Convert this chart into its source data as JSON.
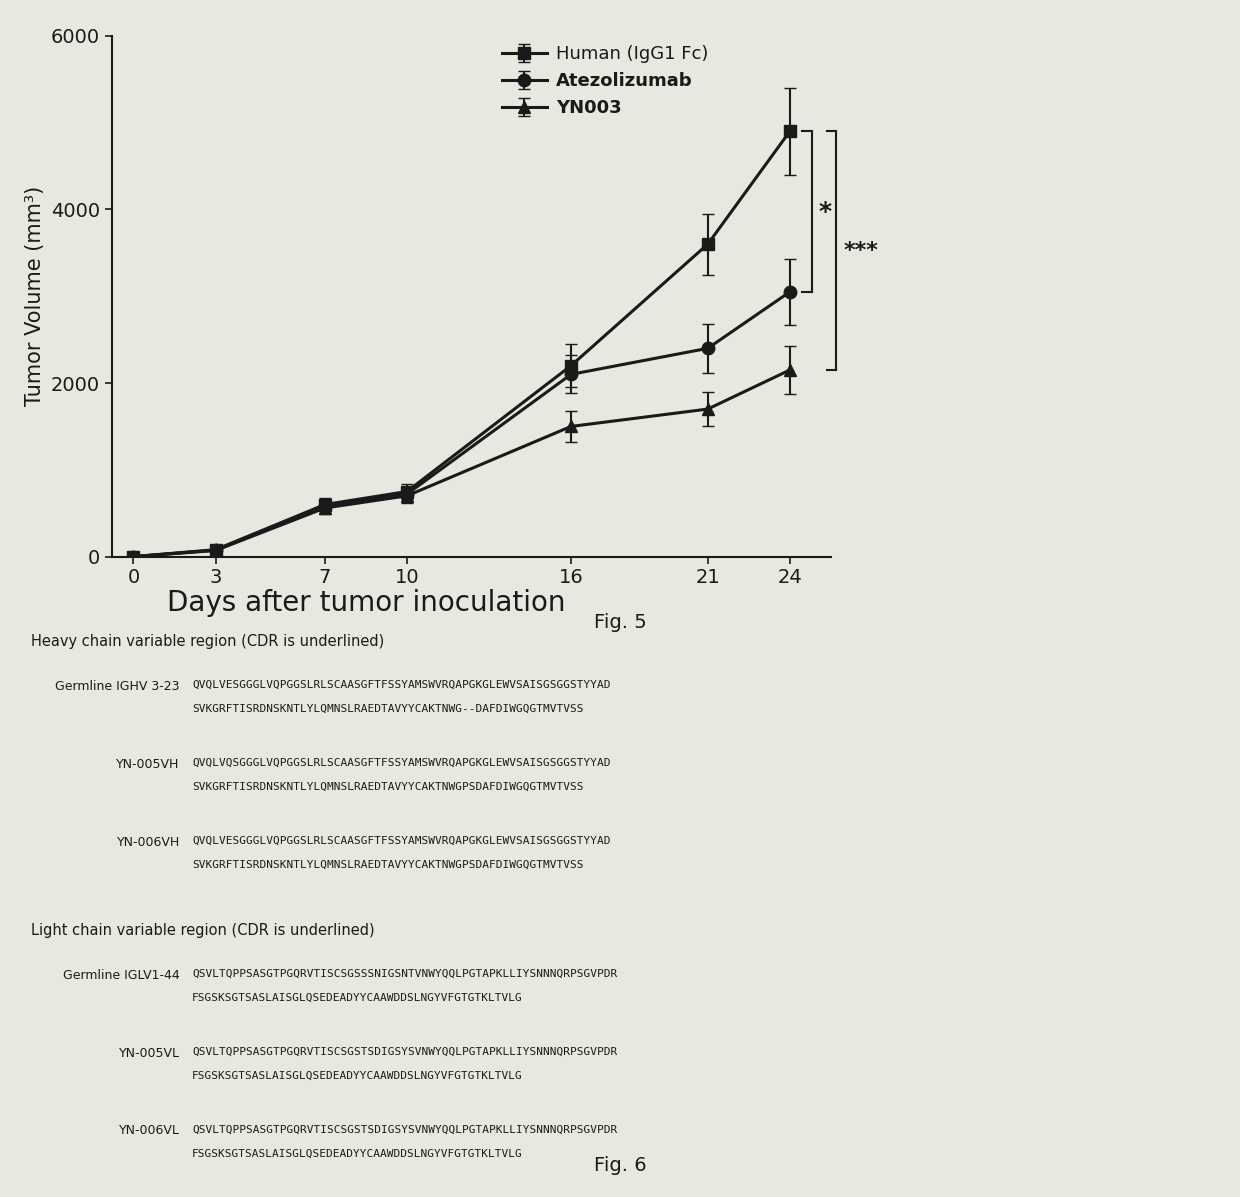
{
  "fig5": {
    "days": [
      0,
      3,
      7,
      10,
      16,
      21,
      24
    ],
    "human_mean": [
      0,
      80,
      600,
      750,
      2200,
      3600,
      4900
    ],
    "human_err": [
      5,
      40,
      80,
      90,
      250,
      350,
      500
    ],
    "atezolizumab_mean": [
      0,
      75,
      580,
      720,
      2100,
      2400,
      3050
    ],
    "atezolizumab_err": [
      5,
      35,
      75,
      85,
      220,
      280,
      380
    ],
    "yn003_mean": [
      0,
      70,
      560,
      700,
      1500,
      1700,
      2150
    ],
    "yn003_err": [
      5,
      30,
      70,
      80,
      180,
      200,
      280
    ],
    "ylabel": "Tumor Volume (mm³)",
    "xlabel": "Days after tumor inoculation",
    "ylim": [
      0,
      6000
    ],
    "yticks": [
      0,
      2000,
      4000,
      6000
    ],
    "xticks": [
      0,
      3,
      7,
      10,
      16,
      21,
      24
    ],
    "legend_human": "Human (IgG1 Fc)",
    "legend_atezolizumab": "Atezolizumab",
    "legend_yn003": "YN003",
    "fig_label": "Fig. 5",
    "star1": "*",
    "star2": "***"
  },
  "fig6": {
    "heavy_chain_title": "Heavy chain variable region (CDR is underlined)",
    "light_chain_title": "Light chain variable region (CDR is underlined)",
    "fig_label": "Fig. 6",
    "heavy_rows": [
      {
        "label": "Germline IGHV 3-23",
        "line1": "QVQLVESGGGLVQPGGSLRLSCAASGFTFSSYAMSWVRQAPGKGLEWVSAISGSGGSTYYAD",
        "line2": "SVKGRFTISRDNSKNTLYLQMNSLRAEDTAVYYCAKTNWG--DAFDIWGQGTMVTVSS"
      },
      {
        "label": "YN-005VH",
        "line1": "QVQLVQSGGGLVQPGGSLRLSCAASGFTFSSYAMSWVRQAPGKGLEWVSAISGSGGSTYYAD",
        "line2": "SVKGRFTISRDNSKNTLYLQMNSLRAEDTAVYYCAKTNWGPSDAFDIWGQGTMVTVSS"
      },
      {
        "label": "YN-006VH",
        "line1": "QVQLVESGGGLVQPGGSLRLSCAASGFTFSSYAMSWVRQAPGKGLEWVSAISGSGGSTYYAD",
        "line2": "SVKGRFTISRDNSKNTLYLQMNSLRAEDTAVYYCAKTNWGPSDAFDIWGQGTMVTVSS"
      }
    ],
    "light_rows": [
      {
        "label": "Germline IGLV1-44",
        "line1": "QSVLTQPPSASGTPGQRVTISCSGSSSNIGSNTVNWYQQLPGTAPKLLIYSNNNQRPSGVPDR",
        "line2": "FSGSKSGTSASLAISGLQSEDEADYYCAAWDDSLNGYVFGTGTKLTVLG"
      },
      {
        "label": "YN-005VL",
        "line1": "QSVLTQPPSASGTPGQRVTISCSGSTSDIGSYSVNWYQQLPGTAPKLLIYSNNNQRPSGVPDR",
        "line2": "FSGSKSGTSASLAISGLQSEDEADYYCAAWDDSLNGYVFGTGTKLTVLG"
      },
      {
        "label": "YN-006VL",
        "line1": "QSVLTQPPSASGTPGQRVTISCSGSTSDIGSYSVNWYQQLPGTAPKLLIYSNNNQRPSGVPDR",
        "line2": "FSGSKSGTSASLAISGLQSEDEADYYCAAWDDSLNGYVFGTGTKLTVLG"
      }
    ]
  },
  "background_color": "#e8e8e0",
  "line_color": "#1a1a1a",
  "text_color": "#1a1a1a"
}
